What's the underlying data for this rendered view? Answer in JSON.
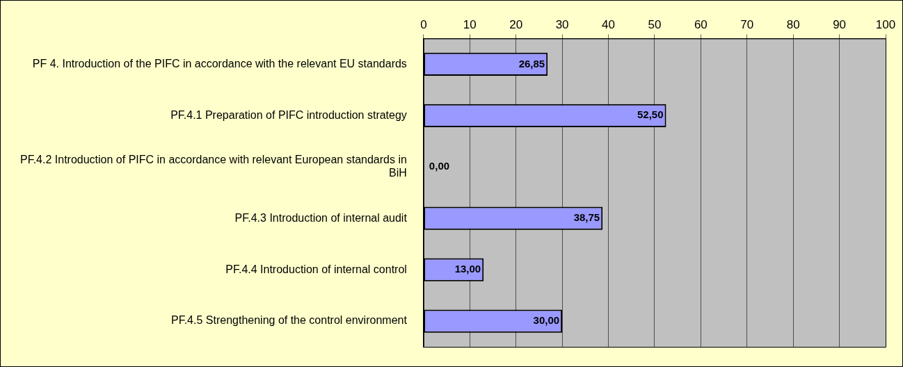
{
  "chart_data": {
    "type": "bar",
    "orientation": "horizontal",
    "categories": [
      "PF 4. Introduction of the PIFC in accordance with the relevant EU standards",
      "PF.4.1 Preparation of PIFC introduction strategy",
      "PF.4.2 Introduction of PIFC in accordance with relevant European standards in BiH",
      "PF.4.3 Introduction of internal audit",
      "PF.4.4 Introduction of internal control",
      "PF.4.5 Strengthening of the control environment"
    ],
    "values": [
      26.85,
      52.5,
      0,
      38.75,
      13,
      30
    ],
    "value_labels": [
      "26,85",
      "52,50",
      "0,00",
      "38,75",
      "13,00",
      "30,00"
    ],
    "color": "#9999ff",
    "xlim": [
      0,
      100
    ],
    "xticks": [
      0,
      10,
      20,
      30,
      40,
      50,
      60,
      70,
      80,
      90,
      100
    ],
    "grid": "x",
    "legend": false
  }
}
